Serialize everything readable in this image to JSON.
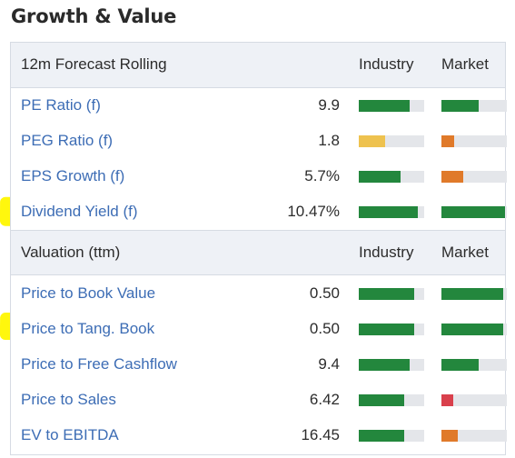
{
  "title": "Growth & Value",
  "colors": {
    "green": "#23873d",
    "yellow": "#eec24f",
    "orange": "#e07a2a",
    "red": "#d9404c",
    "track": "#e4e6ea",
    "link": "#3d6db5",
    "highlight": "#fff700"
  },
  "forecast": {
    "label": "12m Forecast Rolling",
    "industry_label": "Industry",
    "market_label": "Market",
    "rows": [
      {
        "label": "PE Ratio (f)",
        "value": "9.9",
        "industry": {
          "level": 0.78,
          "color": "green"
        },
        "market": {
          "level": 0.57,
          "color": "green"
        }
      },
      {
        "label": "PEG Ratio (f)",
        "value": "1.8",
        "industry": {
          "level": 0.4,
          "color": "yellow"
        },
        "market": {
          "level": 0.2,
          "color": "orange"
        }
      },
      {
        "label": "EPS Growth (f)",
        "value": "5.7%",
        "industry": {
          "level": 0.64,
          "color": "green"
        },
        "market": {
          "level": 0.33,
          "color": "orange"
        }
      },
      {
        "label": "Dividend Yield (f)",
        "value": "10.47%",
        "industry": {
          "level": 0.9,
          "color": "green"
        },
        "market": {
          "level": 0.97,
          "color": "green"
        }
      }
    ]
  },
  "valuation": {
    "label": "Valuation (ttm)",
    "industry_label": "Industry",
    "market_label": "Market",
    "rows": [
      {
        "label": "Price to Book Value",
        "value": "0.50",
        "industry": {
          "level": 0.85,
          "color": "green"
        },
        "market": {
          "level": 0.95,
          "color": "green"
        }
      },
      {
        "label": "Price to Tang. Book",
        "value": "0.50",
        "industry": {
          "level": 0.85,
          "color": "green"
        },
        "market": {
          "level": 0.95,
          "color": "green"
        }
      },
      {
        "label": "Price to Free Cashflow",
        "value": "9.4",
        "industry": {
          "level": 0.78,
          "color": "green"
        },
        "market": {
          "level": 0.57,
          "color": "green"
        }
      },
      {
        "label": "Price to Sales",
        "value": "6.42",
        "industry": {
          "level": 0.7,
          "color": "green"
        },
        "market": {
          "level": 0.18,
          "color": "red"
        }
      },
      {
        "label": "EV to EBITDA",
        "value": "16.45",
        "industry": {
          "level": 0.7,
          "color": "green"
        },
        "market": {
          "level": 0.25,
          "color": "orange"
        }
      }
    ]
  }
}
